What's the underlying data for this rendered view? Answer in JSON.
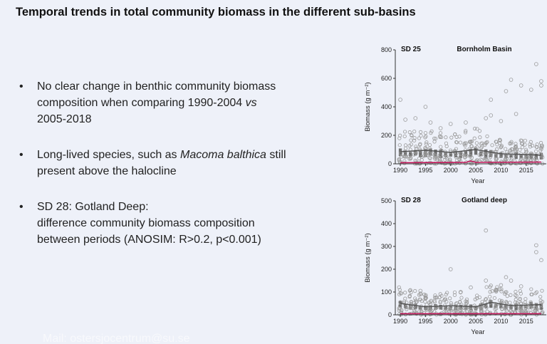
{
  "slide": {
    "title": "Temporal trends in total community biomass in the different sub-basins",
    "bullets": [
      {
        "parts": [
          {
            "text": "No clear change in benthic community biomass composition when comparing 1990-2004 ",
            "italic": false
          },
          {
            "text": "vs",
            "italic": true
          },
          {
            "text": " 2005-2018",
            "italic": false
          }
        ]
      },
      {
        "parts": [
          {
            "text": "Long-lived species, such as ",
            "italic": false
          },
          {
            "text": "Macoma balthica",
            "italic": true
          },
          {
            "text": " still present above the halocline",
            "italic": false
          }
        ]
      },
      {
        "parts": [
          {
            "text": "SD 28: Gotland Deep:",
            "italic": false,
            "br": true
          },
          {
            "text": "difference community biomass composition between periods (ANOSIM: R>0.2, p<0.001)",
            "italic": false
          }
        ]
      }
    ],
    "footer": "Mail: ostersjocentrum@su.se"
  },
  "colors": {
    "background": "#eef1f9",
    "points": "#9a9a9a",
    "boxes": "#6f6f6f",
    "trend": "#555555",
    "baseline": "#c2185b"
  },
  "chart_data": [
    {
      "type": "scatter",
      "panel_label": "SD 25",
      "title": "Bornholm Basin",
      "xlabel": "Year",
      "ylabel": "Biomass (g m⁻²)",
      "xlim": [
        1989,
        2019
      ],
      "ylim": [
        0,
        800
      ],
      "xticks": [
        1990,
        1995,
        2000,
        2005,
        2010,
        2015
      ],
      "yticks": [
        0,
        200,
        400,
        600,
        800
      ],
      "outliers": [
        [
          1990,
          450
        ],
        [
          1991,
          310
        ],
        [
          1993,
          320
        ],
        [
          1995,
          400
        ],
        [
          1996,
          290
        ],
        [
          1998,
          250
        ],
        [
          2000,
          280
        ],
        [
          2003,
          290
        ],
        [
          2007,
          320
        ],
        [
          2008,
          340
        ],
        [
          2008,
          450
        ],
        [
          2010,
          300
        ],
        [
          2011,
          510
        ],
        [
          2012,
          590
        ],
        [
          2013,
          350
        ],
        [
          2014,
          550
        ],
        [
          2016,
          520
        ],
        [
          2017,
          700
        ],
        [
          2018,
          580
        ],
        [
          2018,
          550
        ]
      ],
      "trend": {
        "x": [
          1990,
          1995,
          2000,
          2005,
          2010,
          2015,
          2018
        ],
        "y": [
          85,
          95,
          80,
          100,
          70,
          65,
          60
        ]
      },
      "baseline": {
        "x": [
          1990,
          2003,
          2004,
          2005,
          2018
        ],
        "y": [
          8,
          10,
          20,
          10,
          12
        ]
      }
    },
    {
      "type": "scatter",
      "panel_label": "SD 28",
      "title": "Gotland deep",
      "xlabel": "Year",
      "ylabel": "Biomass (g m⁻²)",
      "xlim": [
        1989,
        2019
      ],
      "ylim": [
        0,
        500
      ],
      "xticks": [
        1990,
        1995,
        2000,
        2005,
        2010,
        2015
      ],
      "yticks": [
        0,
        100,
        200,
        300,
        400,
        500
      ],
      "outliers": [
        [
          1990,
          55
        ],
        [
          1994,
          105
        ],
        [
          1994,
          90
        ],
        [
          2000,
          200
        ],
        [
          2002,
          100
        ],
        [
          2004,
          120
        ],
        [
          2007,
          370
        ],
        [
          2007,
          150
        ],
        [
          2009,
          110
        ],
        [
          2010,
          130
        ],
        [
          2011,
          165
        ],
        [
          2012,
          150
        ],
        [
          2014,
          125
        ],
        [
          2017,
          275
        ],
        [
          2017,
          305
        ],
        [
          2018,
          240
        ]
      ],
      "trend": {
        "x": [
          1990,
          1995,
          2000,
          2005,
          2008,
          2012,
          2018
        ],
        "y": [
          50,
          35,
          40,
          35,
          55,
          40,
          45
        ]
      },
      "baseline": {
        "x": [
          1990,
          2018
        ],
        "y": [
          5,
          5
        ]
      }
    }
  ]
}
